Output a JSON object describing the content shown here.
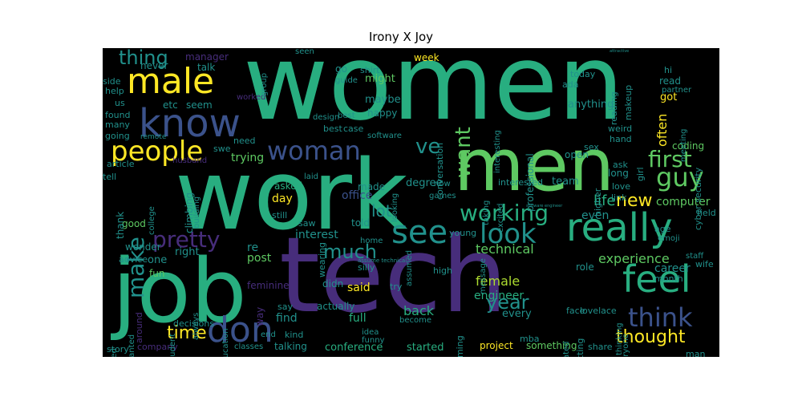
{
  "title": "Irony X Joy",
  "colors": {
    "background": "#000000",
    "palette": [
      "#440154",
      "#472d7b",
      "#3b528b",
      "#2c728e",
      "#21918c",
      "#28ae80",
      "#5ec962",
      "#addc30",
      "#fde725"
    ]
  },
  "words": [
    {
      "text": "women",
      "size": 130,
      "color": "#28ae80",
      "vertical": false
    },
    {
      "text": "work",
      "size": 120,
      "color": "#28ae80",
      "vertical": false
    },
    {
      "text": "tech",
      "size": 130,
      "color": "#472d7b",
      "vertical": false
    },
    {
      "text": "job",
      "size": 110,
      "color": "#28ae80",
      "vertical": false
    },
    {
      "text": "men",
      "size": 90,
      "color": "#5ec962",
      "vertical": false
    },
    {
      "text": "know",
      "size": 48,
      "color": "#3b528b",
      "vertical": false
    },
    {
      "text": "male",
      "size": 44,
      "color": "#fde725",
      "vertical": false
    },
    {
      "text": "people",
      "size": 34,
      "color": "#fde725",
      "vertical": false
    },
    {
      "text": "woman",
      "size": 32,
      "color": "#3b528b",
      "vertical": false
    },
    {
      "text": "really",
      "size": 48,
      "color": "#28ae80",
      "vertical": false
    },
    {
      "text": "feel",
      "size": 46,
      "color": "#28ae80",
      "vertical": false
    },
    {
      "text": "don",
      "size": 44,
      "color": "#3b528b",
      "vertical": false
    },
    {
      "text": "see",
      "size": 40,
      "color": "#21918c",
      "vertical": false
    },
    {
      "text": "look",
      "size": 34,
      "color": "#21918c",
      "vertical": false
    },
    {
      "text": "think",
      "size": 32,
      "color": "#3b528b",
      "vertical": false
    },
    {
      "text": "guy",
      "size": 32,
      "color": "#5ec962",
      "vertical": false
    },
    {
      "text": "first",
      "size": 28,
      "color": "#5ec962",
      "vertical": false
    },
    {
      "text": "working",
      "size": 28,
      "color": "#28ae80",
      "vertical": false
    },
    {
      "text": "pretty",
      "size": 28,
      "color": "#472d7b",
      "vertical": false
    },
    {
      "text": "thing",
      "size": 24,
      "color": "#21918c",
      "vertical": false
    },
    {
      "text": "make",
      "size": 28,
      "color": "#21918c",
      "vertical": true
    },
    {
      "text": "want",
      "size": 26,
      "color": "#5ec962",
      "vertical": true
    },
    {
      "text": "ve",
      "size": 26,
      "color": "#21918c",
      "vertical": false
    },
    {
      "text": "new",
      "size": 22,
      "color": "#fde725",
      "vertical": false
    },
    {
      "text": "year",
      "size": 24,
      "color": "#21918c",
      "vertical": false
    },
    {
      "text": "much",
      "size": 24,
      "color": "#21918c",
      "vertical": false
    },
    {
      "text": "time",
      "size": 22,
      "color": "#fde725",
      "vertical": false
    },
    {
      "text": "thought",
      "size": 22,
      "color": "#fde725",
      "vertical": false
    },
    {
      "text": "lot",
      "size": 20,
      "color": "#21918c",
      "vertical": false
    },
    {
      "text": "life",
      "size": 18,
      "color": "#28ae80",
      "vertical": false
    },
    {
      "text": "experience",
      "size": 16,
      "color": "#5ec962",
      "vertical": false
    },
    {
      "text": "technical",
      "size": 16,
      "color": "#5ec962",
      "vertical": false
    },
    {
      "text": "female",
      "size": 16,
      "color": "#addc30",
      "vertical": false
    },
    {
      "text": "engineer",
      "size": 14,
      "color": "#28ae80",
      "vertical": false
    },
    {
      "text": "computer",
      "size": 14,
      "color": "#5ec962",
      "vertical": false
    },
    {
      "text": "career",
      "size": 14,
      "color": "#21918c",
      "vertical": false
    },
    {
      "text": "office",
      "size": 14,
      "color": "#3b528b",
      "vertical": false
    },
    {
      "text": "post",
      "size": 14,
      "color": "#5ec962",
      "vertical": false
    },
    {
      "text": "interest",
      "size": 14,
      "color": "#21918c",
      "vertical": false
    },
    {
      "text": "said",
      "size": 14,
      "color": "#fde725",
      "vertical": false
    },
    {
      "text": "back",
      "size": 16,
      "color": "#28ae80",
      "vertical": false
    },
    {
      "text": "find",
      "size": 14,
      "color": "#21918c",
      "vertical": false
    },
    {
      "text": "full",
      "size": 14,
      "color": "#28ae80",
      "vertical": false
    },
    {
      "text": "conference",
      "size": 13,
      "color": "#28ae80",
      "vertical": false
    },
    {
      "text": "started",
      "size": 13,
      "color": "#28ae80",
      "vertical": false
    },
    {
      "text": "talking",
      "size": 12,
      "color": "#21918c",
      "vertical": false
    },
    {
      "text": "project",
      "size": 12,
      "color": "#fde725",
      "vertical": false
    },
    {
      "text": "something",
      "size": 12,
      "color": "#5ec962",
      "vertical": false
    },
    {
      "text": "share",
      "size": 11,
      "color": "#21918c",
      "vertical": false
    },
    {
      "text": "anything",
      "size": 13,
      "color": "#21918c",
      "vertical": false
    },
    {
      "text": "often",
      "size": 16,
      "color": "#fde725",
      "vertical": true
    },
    {
      "text": "got",
      "size": 13,
      "color": "#fde725",
      "vertical": false
    },
    {
      "text": "read",
      "size": 12,
      "color": "#21918c",
      "vertical": false
    },
    {
      "text": "coding",
      "size": 12,
      "color": "#5ec962",
      "vertical": false
    },
    {
      "text": "team",
      "size": 13,
      "color": "#21918c",
      "vertical": false
    },
    {
      "text": "trying",
      "size": 14,
      "color": "#5ec962",
      "vertical": false
    },
    {
      "text": "day",
      "size": 14,
      "color": "#fde725",
      "vertical": false
    },
    {
      "text": "asked",
      "size": 12,
      "color": "#28ae80",
      "vertical": false
    },
    {
      "text": "made",
      "size": 12,
      "color": "#21918c",
      "vertical": false
    },
    {
      "text": "told",
      "size": 12,
      "color": "#21918c",
      "vertical": false
    },
    {
      "text": "right",
      "size": 13,
      "color": "#21918c",
      "vertical": false
    },
    {
      "text": "one",
      "size": 13,
      "color": "#21918c",
      "vertical": false
    },
    {
      "text": "fun",
      "size": 12,
      "color": "#5ec962",
      "vertical": false
    },
    {
      "text": "good",
      "size": 12,
      "color": "#5ec962",
      "vertical": false
    },
    {
      "text": "wonder",
      "size": 12,
      "color": "#21918c",
      "vertical": false
    },
    {
      "text": "advice",
      "size": 11,
      "color": "#21918c",
      "vertical": false
    },
    {
      "text": "story",
      "size": 11,
      "color": "#21918c",
      "vertical": false
    },
    {
      "text": "company",
      "size": 11,
      "color": "#472d7b",
      "vertical": false
    },
    {
      "text": "manager",
      "size": 12,
      "color": "#472d7b",
      "vertical": false
    },
    {
      "text": "talk",
      "size": 12,
      "color": "#21918c",
      "vertical": false
    },
    {
      "text": "never",
      "size": 12,
      "color": "#21918c",
      "vertical": false
    },
    {
      "text": "etc",
      "size": 12,
      "color": "#21918c",
      "vertical": false
    },
    {
      "text": "seem",
      "size": 12,
      "color": "#21918c",
      "vertical": false
    },
    {
      "text": "side",
      "size": 11,
      "color": "#21918c",
      "vertical": false
    },
    {
      "text": "help",
      "size": 11,
      "color": "#21918c",
      "vertical": false
    },
    {
      "text": "us",
      "size": 11,
      "color": "#21918c",
      "vertical": false
    },
    {
      "text": "found",
      "size": 11,
      "color": "#21918c",
      "vertical": false
    },
    {
      "text": "many",
      "size": 11,
      "color": "#21918c",
      "vertical": false
    },
    {
      "text": "going",
      "size": 11,
      "color": "#21918c",
      "vertical": false
    },
    {
      "text": "swe",
      "size": 11,
      "color": "#21918c",
      "vertical": false
    },
    {
      "text": "need",
      "size": 11,
      "color": "#21918c",
      "vertical": false
    },
    {
      "text": "worked",
      "size": 10,
      "color": "#472d7b",
      "vertical": false
    },
    {
      "text": "remote",
      "size": 9,
      "color": "#21918c",
      "vertical": false
    },
    {
      "text": "article",
      "size": 11,
      "color": "#21918c",
      "vertical": false
    },
    {
      "text": "husband",
      "size": 10,
      "color": "#472d7b",
      "vertical": false
    },
    {
      "text": "climbing",
      "size": 12,
      "color": "#21918c",
      "vertical": true
    },
    {
      "text": "building",
      "size": 10,
      "color": "#21918c",
      "vertical": true
    },
    {
      "text": "college",
      "size": 10,
      "color": "#21918c",
      "vertical": true
    },
    {
      "text": "thank",
      "size": 12,
      "color": "#21918c",
      "vertical": true
    },
    {
      "text": "tell",
      "size": 11,
      "color": "#21918c",
      "vertical": false
    },
    {
      "text": "might",
      "size": 13,
      "color": "#5ec962",
      "vertical": false
    },
    {
      "text": "maybe",
      "size": 13,
      "color": "#21918c",
      "vertical": false
    },
    {
      "text": "happy",
      "size": 12,
      "color": "#21918c",
      "vertical": false
    },
    {
      "text": "week",
      "size": 12,
      "color": "#fde725",
      "vertical": false
    },
    {
      "text": "go",
      "size": 12,
      "color": "#21918c",
      "vertical": false
    },
    {
      "text": "shirt",
      "size": 11,
      "color": "#21918c",
      "vertical": false
    },
    {
      "text": "guide",
      "size": 10,
      "color": "#21918c",
      "vertical": false
    },
    {
      "text": "seen",
      "size": 10,
      "color": "#21918c",
      "vertical": false
    },
    {
      "text": "group",
      "size": 10,
      "color": "#21918c",
      "vertical": true
    },
    {
      "text": "design",
      "size": 10,
      "color": "#21918c",
      "vertical": false
    },
    {
      "text": "best",
      "size": 11,
      "color": "#21918c",
      "vertical": false
    },
    {
      "text": "case",
      "size": 11,
      "color": "#21918c",
      "vertical": false
    },
    {
      "text": "software",
      "size": 10,
      "color": "#21918c",
      "vertical": false
    },
    {
      "text": "conversation",
      "size": 11,
      "color": "#21918c",
      "vertical": true
    },
    {
      "text": "interesting",
      "size": 10,
      "color": "#21918c",
      "vertical": true
    },
    {
      "text": "professional",
      "size": 12,
      "color": "#21918c",
      "vertical": true
    },
    {
      "text": "degree",
      "size": 13,
      "color": "#21918c",
      "vertical": false
    },
    {
      "text": "looking",
      "size": 10,
      "color": "#21918c",
      "vertical": true
    },
    {
      "text": "now",
      "size": 10,
      "color": "#21918c",
      "vertical": false
    },
    {
      "text": "games",
      "size": 10,
      "color": "#21918c",
      "vertical": false
    },
    {
      "text": "taking",
      "size": 10,
      "color": "#21918c",
      "vertical": true
    },
    {
      "text": "excited",
      "size": 10,
      "color": "#21918c",
      "vertical": true
    },
    {
      "text": "interested",
      "size": 11,
      "color": "#21918c",
      "vertical": false
    },
    {
      "text": "open",
      "size": 12,
      "color": "#21918c",
      "vertical": false
    },
    {
      "text": "sex",
      "size": 11,
      "color": "#21918c",
      "vertical": false
    },
    {
      "text": "ask",
      "size": 11,
      "color": "#21918c",
      "vertical": false
    },
    {
      "text": "long",
      "size": 12,
      "color": "#21918c",
      "vertical": false
    },
    {
      "text": "higher",
      "size": 11,
      "color": "#21918c",
      "vertical": true
    },
    {
      "text": "love",
      "size": 11,
      "color": "#21918c",
      "vertical": false
    },
    {
      "text": "link",
      "size": 11,
      "color": "#21918c",
      "vertical": false
    },
    {
      "text": "emoji",
      "size": 10,
      "color": "#21918c",
      "vertical": false
    },
    {
      "text": "even",
      "size": 14,
      "color": "#21918c",
      "vertical": false
    },
    {
      "text": "today",
      "size": 11,
      "color": "#21918c",
      "vertical": false
    },
    {
      "text": "ada",
      "size": 11,
      "color": "#21918c",
      "vertical": false
    },
    {
      "text": "reading",
      "size": 11,
      "color": "#21918c",
      "vertical": true
    },
    {
      "text": "makeup",
      "size": 11,
      "color": "#21918c",
      "vertical": true
    },
    {
      "text": "weird",
      "size": 11,
      "color": "#21918c",
      "vertical": false
    },
    {
      "text": "hand",
      "size": 11,
      "color": "#21918c",
      "vertical": false
    },
    {
      "text": "girl",
      "size": 11,
      "color": "#21918c",
      "vertical": true
    },
    {
      "text": "hi",
      "size": 11,
      "color": "#21918c",
      "vertical": false
    },
    {
      "text": "partner",
      "size": 10,
      "color": "#21918c",
      "vertical": false
    },
    {
      "text": "meeting",
      "size": 10,
      "color": "#21918c",
      "vertical": true
    },
    {
      "text": "cyber security",
      "size": 11,
      "color": "#21918c",
      "vertical": true
    },
    {
      "text": "field",
      "size": 11,
      "color": "#21918c",
      "vertical": false
    },
    {
      "text": "age",
      "size": 11,
      "color": "#21918c",
      "vertical": false
    },
    {
      "text": "role",
      "size": 12,
      "color": "#21918c",
      "vertical": false
    },
    {
      "text": "month",
      "size": 11,
      "color": "#21918c",
      "vertical": false
    },
    {
      "text": "wife",
      "size": 11,
      "color": "#21918c",
      "vertical": false
    },
    {
      "text": "staff",
      "size": 10,
      "color": "#21918c",
      "vertical": false
    },
    {
      "text": "man",
      "size": 11,
      "color": "#21918c",
      "vertical": false
    },
    {
      "text": "face",
      "size": 11,
      "color": "#21918c",
      "vertical": false
    },
    {
      "text": "treated",
      "size": 10,
      "color": "#21918c",
      "vertical": true
    },
    {
      "text": "getting",
      "size": 11,
      "color": "#21918c",
      "vertical": true
    },
    {
      "text": "lovelace",
      "size": 11,
      "color": "#21918c",
      "vertical": false
    },
    {
      "text": "thinking",
      "size": 10,
      "color": "#21918c",
      "vertical": true
    },
    {
      "text": "everyone",
      "size": 10,
      "color": "#21918c",
      "vertical": true
    },
    {
      "text": "every",
      "size": 13,
      "color": "#21918c",
      "vertical": false
    },
    {
      "text": "mba",
      "size": 11,
      "color": "#21918c",
      "vertical": false
    },
    {
      "text": "programming",
      "size": 11,
      "color": "#21918c",
      "vertical": true
    },
    {
      "text": "message",
      "size": 10,
      "color": "#21918c",
      "vertical": true
    },
    {
      "text": "high",
      "size": 11,
      "color": "#21918c",
      "vertical": false
    },
    {
      "text": "young",
      "size": 11,
      "color": "#21918c",
      "vertical": false
    },
    {
      "text": "assume technical",
      "size": 7,
      "color": "#21918c",
      "vertical": false
    },
    {
      "text": "assumed",
      "size": 10,
      "color": "#21918c",
      "vertical": true
    },
    {
      "text": "silly",
      "size": 11,
      "color": "#21918c",
      "vertical": false
    },
    {
      "text": "try",
      "size": 11,
      "color": "#21918c",
      "vertical": false
    },
    {
      "text": "become",
      "size": 10,
      "color": "#21918c",
      "vertical": false
    },
    {
      "text": "idea",
      "size": 10,
      "color": "#21918c",
      "vertical": false
    },
    {
      "text": "funny",
      "size": 10,
      "color": "#21918c",
      "vertical": false
    },
    {
      "text": "home",
      "size": 10,
      "color": "#21918c",
      "vertical": false
    },
    {
      "text": "actually",
      "size": 12,
      "color": "#21918c",
      "vertical": false
    },
    {
      "text": "didn",
      "size": 12,
      "color": "#21918c",
      "vertical": false
    },
    {
      "text": "say",
      "size": 11,
      "color": "#21918c",
      "vertical": false
    },
    {
      "text": "end",
      "size": 10,
      "color": "#21918c",
      "vertical": false
    },
    {
      "text": "kind",
      "size": 11,
      "color": "#21918c",
      "vertical": false
    },
    {
      "text": "classes",
      "size": 10,
      "color": "#21918c",
      "vertical": false
    },
    {
      "text": "still",
      "size": 11,
      "color": "#21918c",
      "vertical": false
    },
    {
      "text": "saw",
      "size": 11,
      "color": "#21918c",
      "vertical": false
    },
    {
      "text": "wearing",
      "size": 11,
      "color": "#21918c",
      "vertical": true
    },
    {
      "text": "laid",
      "size": 10,
      "color": "#21918c",
      "vertical": false
    },
    {
      "text": "feminine",
      "size": 12,
      "color": "#472d7b",
      "vertical": false
    },
    {
      "text": "way",
      "size": 12,
      "color": "#472d7b",
      "vertical": true
    },
    {
      "text": "re",
      "size": 14,
      "color": "#21918c",
      "vertical": false
    },
    {
      "text": "education",
      "size": 10,
      "color": "#21918c",
      "vertical": true
    },
    {
      "text": "always",
      "size": 10,
      "color": "#21918c",
      "vertical": true
    },
    {
      "text": "student",
      "size": 10,
      "color": "#21918c",
      "vertical": true
    },
    {
      "text": "decisions",
      "size": 11,
      "color": "#21918c",
      "vertical": false
    },
    {
      "text": "male dominated",
      "size": 10,
      "color": "#21918c",
      "vertical": true
    },
    {
      "text": "wanted",
      "size": 10,
      "color": "#21918c",
      "vertical": true
    },
    {
      "text": "around",
      "size": 11,
      "color": "#472d7b",
      "vertical": true
    },
    {
      "text": "best",
      "size": 10,
      "color": "#21918c",
      "vertical": false
    },
    {
      "text": "software engineer",
      "size": 5,
      "color": "#21918c",
      "vertical": false
    },
    {
      "text": "attractive",
      "size": 5,
      "color": "#21918c",
      "vertical": false
    }
  ]
}
